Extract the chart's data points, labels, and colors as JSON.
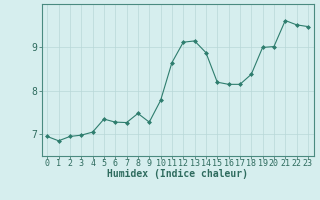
{
  "x": [
    0,
    1,
    2,
    3,
    4,
    5,
    6,
    7,
    8,
    9,
    10,
    11,
    12,
    13,
    14,
    15,
    16,
    17,
    18,
    19,
    20,
    21,
    22,
    23
  ],
  "y": [
    6.95,
    6.85,
    6.95,
    6.98,
    7.05,
    7.35,
    7.28,
    7.27,
    7.48,
    7.28,
    7.78,
    8.65,
    9.12,
    9.15,
    8.88,
    8.2,
    8.15,
    8.15,
    8.38,
    9.0,
    9.02,
    9.62,
    9.52,
    9.48
  ],
  "xlabel": "Humidex (Indice chaleur)",
  "ylabel": "",
  "xlim": [
    -0.5,
    23.5
  ],
  "ylim": [
    6.5,
    10.0
  ],
  "yticks": [
    7,
    8,
    9
  ],
  "xticks": [
    0,
    1,
    2,
    3,
    4,
    5,
    6,
    7,
    8,
    9,
    10,
    11,
    12,
    13,
    14,
    15,
    16,
    17,
    18,
    19,
    20,
    21,
    22,
    23
  ],
  "line_color": "#2e7d6e",
  "marker": "D",
  "marker_size": 2.0,
  "bg_color": "#d6eeee",
  "grid_color": "#b8d8d8",
  "axis_color": "#4a8a80",
  "label_color": "#2e6b5e",
  "font_size_xlabel": 7,
  "font_size_yticks": 7,
  "font_size_xticks": 6
}
